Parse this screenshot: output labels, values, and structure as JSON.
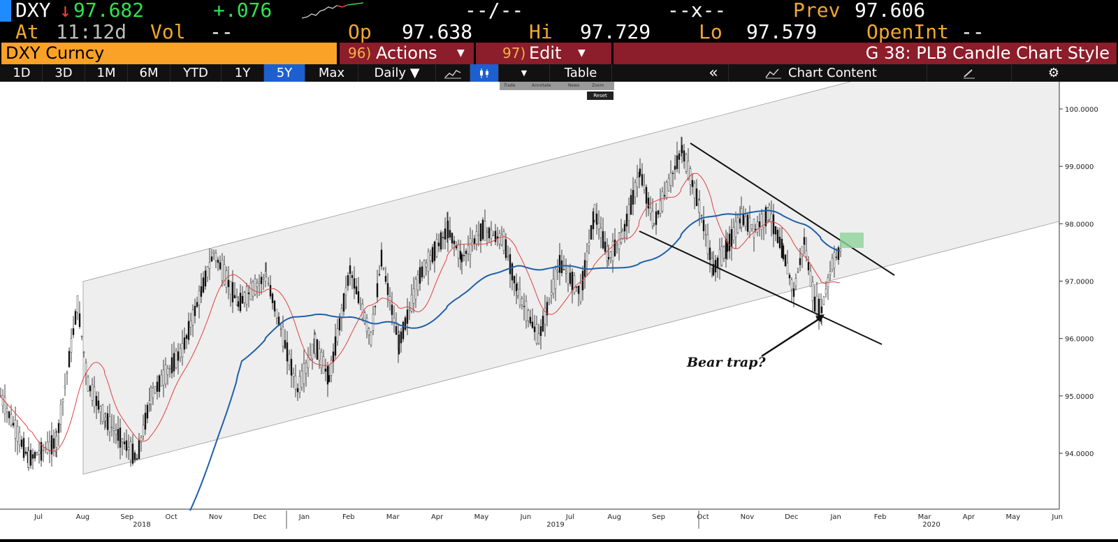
{
  "header": {
    "ticker": "DXY",
    "arrow": "↓",
    "last": "97.682",
    "change": "+.076",
    "bid_ask": "--/--",
    "size": "--x--",
    "prev_label": "Prev",
    "prev_value": "97.606",
    "at_label": "At",
    "time": "11:12d",
    "vol_label": "Vol",
    "vol_value": "--",
    "open_label": "Op",
    "open_value": "97.638",
    "high_label": "Hi",
    "high_value": "97.729",
    "low_label": "Lo",
    "low_value": "97.579",
    "openint_label": "OpenInt",
    "openint_value": "--"
  },
  "security_bar": {
    "security": "DXY Curncy",
    "actions_num": "96)",
    "actions_label": "Actions",
    "edit_num": "97)",
    "edit_label": "Edit",
    "title": "G 38: PLB Candle Chart Style"
  },
  "toolbar": {
    "periods": [
      "1D",
      "3D",
      "1M",
      "6M",
      "YTD",
      "1Y",
      "5Y",
      "Max"
    ],
    "active_period": "5Y",
    "frequency": "Daily ▼",
    "table_label": "Table",
    "collapse_label": "«",
    "chart_content_label": "Chart Content",
    "mini_tools": [
      "Trade",
      "Annotate",
      "News",
      "Zoom"
    ],
    "reset_label": "Reset"
  },
  "chart_data": {
    "type": "candlestick",
    "y_ticks": [
      "100.0000",
      "99.0000",
      "98.0000",
      "97.0000",
      "96.0000",
      "95.0000",
      "94.0000"
    ],
    "x_month_labels": [
      "Jul",
      "Aug",
      "Sep",
      "Oct",
      "Nov",
      "Dec",
      "Jan",
      "Feb",
      "Mar",
      "Apr",
      "May",
      "Jun",
      "Jul",
      "Aug",
      "Sep",
      "Oct",
      "Nov",
      "Dec",
      "Jan",
      "Feb",
      "Mar",
      "Apr",
      "May",
      "Jun"
    ],
    "x_year_labels": [
      "2018",
      "2019",
      "2020"
    ],
    "annotation": "Bear trap?",
    "colors": {
      "candles": "#111111",
      "ma_short": "#e04040",
      "ma_long": "#1f5fa8",
      "channel_fill": "#eeeeee",
      "highlight": "#8fd39a"
    }
  }
}
